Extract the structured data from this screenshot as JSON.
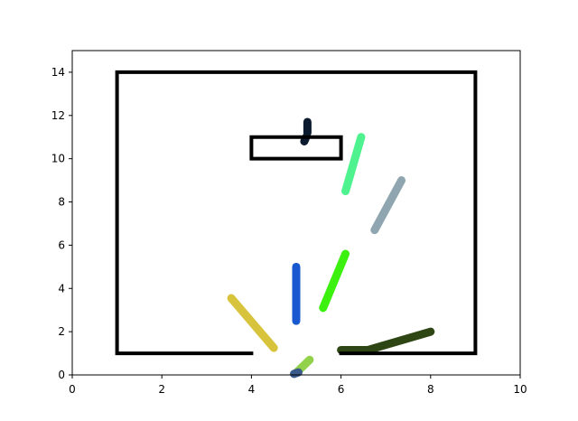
{
  "chart_data": {
    "type": "line",
    "title": "",
    "xlabel": "",
    "ylabel": "",
    "xlim": [
      0,
      10
    ],
    "ylim": [
      0,
      15
    ],
    "x_ticks": [
      0,
      2,
      4,
      6,
      8,
      10
    ],
    "y_ticks": [
      0,
      2,
      4,
      6,
      8,
      10,
      12,
      14
    ],
    "grid": false,
    "legend": "none",
    "walls": {
      "color": "#000000",
      "segments": [
        {
          "x": [
            4,
            1,
            1,
            9,
            9,
            6
          ],
          "y": [
            1,
            1,
            14,
            14,
            1,
            1
          ]
        },
        {
          "x": [
            4,
            6,
            6,
            4,
            4
          ],
          "y": [
            10,
            10,
            11,
            11,
            10
          ]
        }
      ]
    },
    "series": [
      {
        "color": "#0b1a2e",
        "x": [
          5.25,
          5.25
        ],
        "y": [
          11.2,
          11.7
        ]
      },
      {
        "color": "#0b1a2e",
        "x": [
          5.22,
          5.18
        ],
        "y": [
          11.0,
          10.8
        ]
      },
      {
        "color": "#4ef28e",
        "x": [
          6.1,
          6.45
        ],
        "y": [
          8.5,
          11.0
        ]
      },
      {
        "color": "#8fa6b0",
        "x": [
          6.75,
          7.35
        ],
        "y": [
          6.7,
          9.0
        ]
      },
      {
        "color": "#1a58d0",
        "x": [
          5.0,
          5.0
        ],
        "y": [
          2.5,
          5.0
        ]
      },
      {
        "color": "#3cf010",
        "x": [
          5.6,
          6.1
        ],
        "y": [
          3.1,
          5.6
        ]
      },
      {
        "color": "#d8c43c",
        "x": [
          3.55,
          4.5
        ],
        "y": [
          3.55,
          1.25
        ]
      },
      {
        "color": "#92d24a",
        "x": [
          5.0,
          5.3
        ],
        "y": [
          0.1,
          0.7
        ]
      },
      {
        "color": "#3a5a8a",
        "x": [
          4.95,
          5.05
        ],
        "y": [
          0.05,
          0.12
        ]
      },
      {
        "color": "#2e4614",
        "x": [
          6.0,
          6.6,
          8.0
        ],
        "y": [
          1.15,
          1.15,
          2.0
        ]
      }
    ]
  }
}
